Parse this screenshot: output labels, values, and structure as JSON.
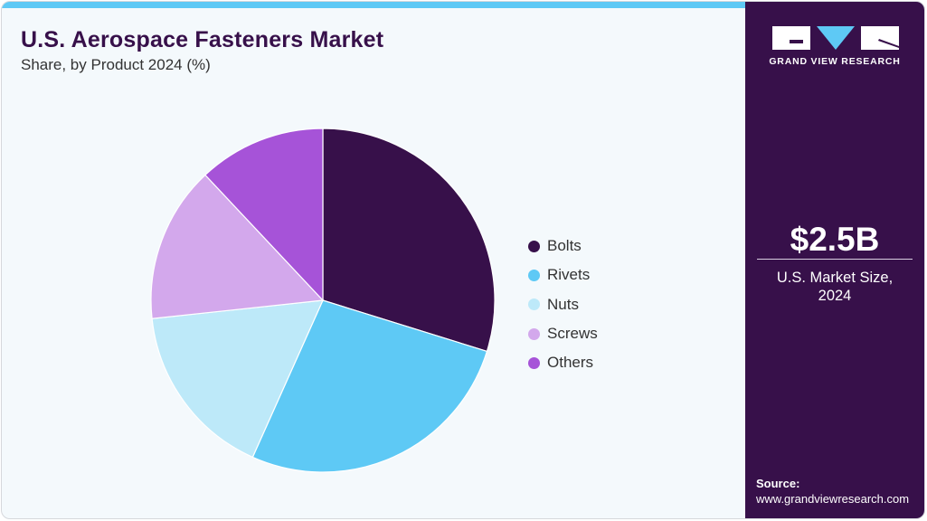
{
  "header": {
    "title": "U.S. Aerospace Fasteners Market",
    "subtitle": "Share, by Product 2024 (%)"
  },
  "colors": {
    "accent_bar": "#5ec9f5",
    "panel": "#37104a",
    "background": "#f4f9fc"
  },
  "legend": {
    "items": [
      {
        "label": "Bolts",
        "color": "#37104a"
      },
      {
        "label": "Rivets",
        "color": "#5ec9f5"
      },
      {
        "label": "Nuts",
        "color": "#bde9f9"
      },
      {
        "label": "Screws",
        "color": "#d3a8ec"
      },
      {
        "label": "Others",
        "color": "#a653d8"
      }
    ]
  },
  "sidebar": {
    "logo_text": "GRAND VIEW RESEARCH",
    "market_size": "$2.5B",
    "market_caption_line1": "U.S. Market Size,",
    "market_caption_line2": "2024",
    "source_label": "Source:",
    "source_url": "www.grandviewresearch.com"
  },
  "chart_data": {
    "type": "pie",
    "title": "U.S. Aerospace Fasteners Market",
    "subtitle": "Share, by Product 2024 (%)",
    "categories": [
      "Bolts",
      "Rivets",
      "Nuts",
      "Screws",
      "Others"
    ],
    "values": [
      29.8,
      26.9,
      16.6,
      14.7,
      12.0
    ],
    "colors": [
      "#37104a",
      "#5ec9f5",
      "#bde9f9",
      "#d3a8ec",
      "#a653d8"
    ],
    "start_angle": "12 o'clock, clockwise",
    "legend_position": "right"
  }
}
